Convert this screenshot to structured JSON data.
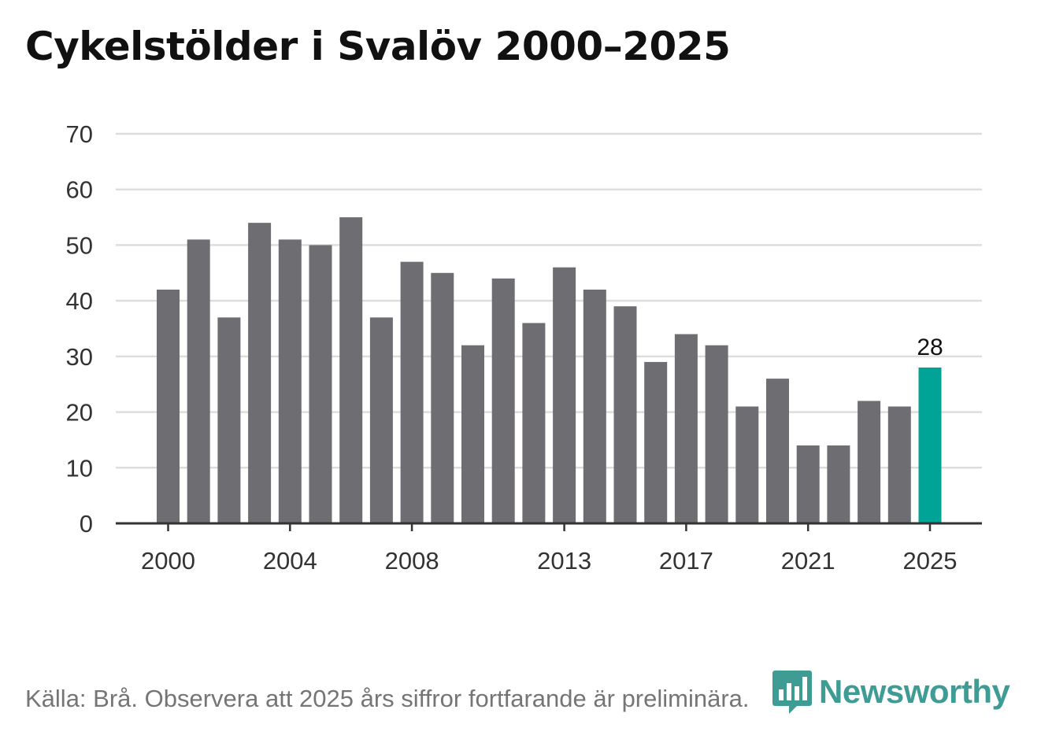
{
  "title": "Cykelstölder i Svalöv 2000–2025",
  "source": "Källa: Brå. Observera att 2025 års siffror fortfarande är preliminära.",
  "brand": {
    "name": "Newsworthy",
    "icon": "newsworthy-logo-icon"
  },
  "colors": {
    "bar": "#6e6d72",
    "highlight": "#00a497",
    "grid": "#dddddd",
    "axis": "#333333",
    "brand": "#3f9c94"
  },
  "chart_data": {
    "type": "bar",
    "title": "Cykelstölder i Svalöv 2000–2025",
    "xlabel": "",
    "ylabel": "",
    "categories": [
      "2000",
      "2001",
      "2002",
      "2003",
      "2004",
      "2005",
      "2006",
      "2007",
      "2008",
      "2009",
      "2010",
      "2011",
      "2012",
      "2013",
      "2014",
      "2015",
      "2016",
      "2017",
      "2018",
      "2019",
      "2020",
      "2021",
      "2022",
      "2023",
      "2024",
      "2025"
    ],
    "values": [
      42,
      51,
      37,
      54,
      51,
      50,
      55,
      37,
      47,
      45,
      32,
      44,
      36,
      46,
      42,
      39,
      29,
      34,
      32,
      21,
      26,
      14,
      14,
      22,
      21,
      28
    ],
    "ylim": [
      0,
      70
    ],
    "yticks": [
      0,
      10,
      20,
      30,
      40,
      50,
      60,
      70
    ],
    "xtick_labels": [
      "2000",
      "2004",
      "2008",
      "2013",
      "2017",
      "2021",
      "2025"
    ],
    "highlight": {
      "category": "2025",
      "label": "28"
    },
    "grid": true
  }
}
